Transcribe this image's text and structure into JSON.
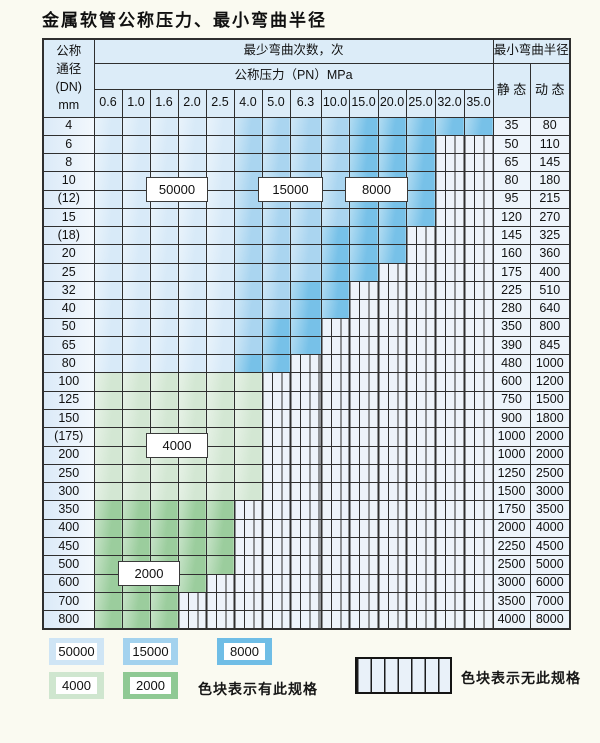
{
  "title": "金属软管公称压力、最小弯曲半径",
  "colors": {
    "blue_light": "#d8eaf8",
    "blue_medium": "#aad5f0",
    "blue_dark": "#77c1e8",
    "green_light": "#d3e7d3",
    "green_dark": "#9bcd9d",
    "hatch_bg": "#edf3fa",
    "header_bg": "#dcecf8",
    "border": "#2f2f2f"
  },
  "table": {
    "header": {
      "dn_lines": [
        "公称",
        "通径",
        "(DN)",
        "mm"
      ],
      "bend_times": "最少弯曲次数，次",
      "pressure": "公称压力（PN）MPa",
      "radius": "最小弯曲半径",
      "static": "静 态",
      "dynamic": "动 态",
      "pressure_columns": [
        "0.6",
        "1.0",
        "1.6",
        "2.0",
        "2.5",
        "4.0",
        "5.0",
        "6.3",
        "10.0",
        "15.0",
        "20.0",
        "25.0",
        "32.0",
        "35.0"
      ]
    },
    "rows": [
      {
        "dn": "4",
        "static": "35",
        "dynamic": "80",
        "group": "blue",
        "max_pn": "35.0",
        "dark_from_pn": "15.0"
      },
      {
        "dn": "6",
        "static": "50",
        "dynamic": "110",
        "group": "blue",
        "max_pn": "25.0",
        "dark_from_pn": "15.0"
      },
      {
        "dn": "8",
        "static": "65",
        "dynamic": "145",
        "group": "blue",
        "max_pn": "25.0",
        "dark_from_pn": "15.0"
      },
      {
        "dn": "10",
        "static": "80",
        "dynamic": "180",
        "group": "blue",
        "max_pn": "25.0",
        "dark_from_pn": "15.0"
      },
      {
        "dn": "(12)",
        "static": "95",
        "dynamic": "215",
        "group": "blue",
        "max_pn": "25.0",
        "dark_from_pn": "15.0"
      },
      {
        "dn": "15",
        "static": "120",
        "dynamic": "270",
        "group": "blue",
        "max_pn": "25.0",
        "dark_from_pn": "15.0"
      },
      {
        "dn": "(18)",
        "static": "145",
        "dynamic": "325",
        "group": "blue",
        "max_pn": "20.0",
        "dark_from_pn": "10.0"
      },
      {
        "dn": "20",
        "static": "160",
        "dynamic": "360",
        "group": "blue",
        "max_pn": "20.0",
        "dark_from_pn": "10.0"
      },
      {
        "dn": "25",
        "static": "175",
        "dynamic": "400",
        "group": "blue",
        "max_pn": "15.0",
        "dark_from_pn": "10.0"
      },
      {
        "dn": "32",
        "static": "225",
        "dynamic": "510",
        "group": "blue",
        "max_pn": "10.0",
        "dark_from_pn": "6.3"
      },
      {
        "dn": "40",
        "static": "280",
        "dynamic": "640",
        "group": "blue",
        "max_pn": "10.0",
        "dark_from_pn": "6.3"
      },
      {
        "dn": "50",
        "static": "350",
        "dynamic": "800",
        "group": "blue",
        "max_pn": "6.3",
        "dark_from_pn": "5.0"
      },
      {
        "dn": "65",
        "static": "390",
        "dynamic": "845",
        "group": "blue",
        "max_pn": "6.3",
        "dark_from_pn": "5.0"
      },
      {
        "dn": "80",
        "static": "480",
        "dynamic": "1000",
        "group": "blue",
        "max_pn": "5.0",
        "dark_from_pn": "4.0"
      },
      {
        "dn": "100",
        "static": "600",
        "dynamic": "1200",
        "group": "green_light",
        "max_pn": "4.0"
      },
      {
        "dn": "125",
        "static": "750",
        "dynamic": "1500",
        "group": "green_light",
        "max_pn": "4.0"
      },
      {
        "dn": "150",
        "static": "900",
        "dynamic": "1800",
        "group": "green_light",
        "max_pn": "4.0"
      },
      {
        "dn": "(175)",
        "static": "1000",
        "dynamic": "2000",
        "group": "green_light",
        "max_pn": "4.0"
      },
      {
        "dn": "200",
        "static": "1000",
        "dynamic": "2000",
        "group": "green_light",
        "max_pn": "4.0"
      },
      {
        "dn": "250",
        "static": "1250",
        "dynamic": "2500",
        "group": "green_light",
        "max_pn": "4.0"
      },
      {
        "dn": "300",
        "static": "1500",
        "dynamic": "3000",
        "group": "green_light",
        "max_pn": "4.0"
      },
      {
        "dn": "350",
        "static": "1750",
        "dynamic": "3500",
        "group": "green_dark",
        "max_pn": "2.5"
      },
      {
        "dn": "400",
        "static": "2000",
        "dynamic": "4000",
        "group": "green_dark",
        "max_pn": "2.5"
      },
      {
        "dn": "450",
        "static": "2250",
        "dynamic": "4500",
        "group": "green_dark",
        "max_pn": "2.5"
      },
      {
        "dn": "500",
        "static": "2500",
        "dynamic": "5000",
        "group": "green_dark",
        "max_pn": "2.5"
      },
      {
        "dn": "600",
        "static": "3000",
        "dynamic": "6000",
        "group": "green_dark",
        "max_pn": "2.0"
      },
      {
        "dn": "700",
        "static": "3500",
        "dynamic": "7000",
        "group": "green_dark",
        "max_pn": "1.6"
      },
      {
        "dn": "800",
        "static": "4000",
        "dynamic": "8000",
        "group": "green_dark",
        "max_pn": "1.6"
      }
    ],
    "zone_labels": [
      {
        "text": "50000",
        "dn_rows": [
          "10",
          "(12)"
        ],
        "pn_cols": [
          "1.6",
          "2.0"
        ]
      },
      {
        "text": "15000",
        "dn_rows": [
          "10",
          "(12)"
        ],
        "pn_cols": [
          "5.0",
          "6.3"
        ]
      },
      {
        "text": "8000",
        "dn_rows": [
          "10",
          "(12)"
        ],
        "pn_cols": [
          "15.0",
          "20.0"
        ]
      },
      {
        "text": "4000",
        "dn_rows": [
          "(175)",
          "200"
        ],
        "pn_cols": [
          "1.6",
          "2.0"
        ]
      },
      {
        "text": "2000",
        "dn_rows": [
          "500",
          "600"
        ],
        "pn_cols": [
          "1.0",
          "1.6"
        ]
      }
    ]
  },
  "legend": {
    "items": [
      {
        "value": "50000",
        "tone": "blue_light"
      },
      {
        "value": "15000",
        "tone": "blue_medium"
      },
      {
        "value": "8000",
        "tone": "blue_dark"
      },
      {
        "value": "4000",
        "tone": "green_light"
      },
      {
        "value": "2000",
        "tone": "green_dark"
      }
    ],
    "has_spec_text": "色块表示有此规格",
    "no_spec_text": "色块表示无此规格"
  }
}
